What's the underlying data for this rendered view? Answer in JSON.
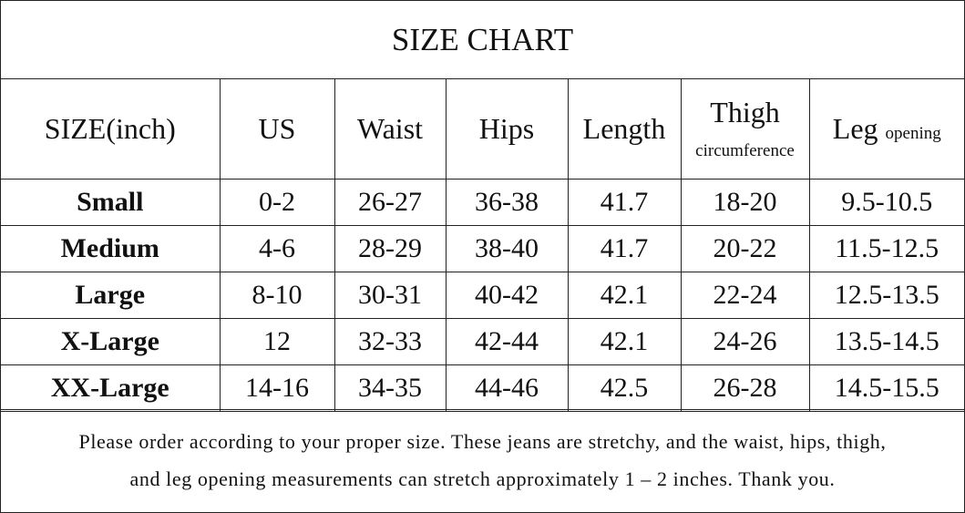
{
  "title": "SIZE CHART",
  "table": {
    "header": [
      {
        "text": "SIZE(inch)"
      },
      {
        "text": "US"
      },
      {
        "text": "Waist"
      },
      {
        "text": "Hips"
      },
      {
        "text": "Length"
      },
      {
        "text": "Thigh",
        "small": "circumference"
      },
      {
        "text": "Leg",
        "small": "opening"
      }
    ],
    "rows": [
      [
        "Small",
        "0-2",
        "26-27",
        "36-38",
        "41.7",
        "18-20",
        "9.5-10.5"
      ],
      [
        "Medium",
        "4-6",
        "28-29",
        "38-40",
        "41.7",
        "20-22",
        "11.5-12.5"
      ],
      [
        "Large",
        "8-10",
        "30-31",
        "40-42",
        "42.1",
        "22-24",
        "12.5-13.5"
      ],
      [
        "X-Large",
        "12",
        "32-33",
        "42-44",
        "42.1",
        "24-26",
        "13.5-14.5"
      ],
      [
        "XX-Large",
        "14-16",
        "34-35",
        "44-46",
        "42.5",
        "26-28",
        "14.5-15.5"
      ]
    ]
  },
  "footer": {
    "lines": [
      "Please order according to your proper size. These jeans are stretchy, and the waist, hips, thigh,",
      "and leg opening measurements can stretch approximately 1 – 2 inches.  Thank you."
    ]
  }
}
